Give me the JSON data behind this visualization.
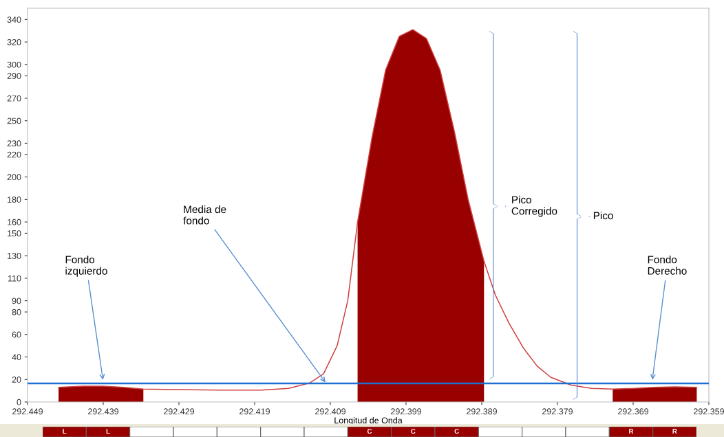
{
  "chart_data": [
    {
      "type": "line",
      "xlabel": "Longitud de Onda",
      "xlim": [
        292.449,
        292.359
      ],
      "xticks": [
        292.449,
        292.439,
        292.429,
        292.419,
        292.409,
        292.399,
        292.389,
        292.379,
        292.369,
        292.359
      ],
      "ylim": [
        0,
        350
      ],
      "yticks": [
        0,
        20,
        40,
        60,
        80,
        90,
        110,
        130,
        150,
        160,
        180,
        200,
        220,
        230,
        250,
        270,
        290,
        300,
        320,
        340
      ],
      "grid": false,
      "legend": false,
      "series": [
        {
          "type": "line",
          "color": "#d04040",
          "x": [
            292.4449,
            292.4417,
            292.439,
            292.4363,
            292.4337,
            292.429,
            292.4235,
            292.4181,
            292.4145,
            292.4117,
            292.4099,
            292.4081,
            292.4067,
            292.4054,
            292.4035,
            292.4017,
            292.3999,
            292.3981,
            292.3963,
            292.3945,
            292.3926,
            292.3908,
            292.3887,
            292.3872,
            292.3854,
            292.3835,
            292.3817,
            292.3799,
            292.3772,
            292.3745,
            292.3717,
            292.369,
            292.3663,
            292.3635,
            292.3606
          ],
          "values": [
            13,
            14,
            14,
            13,
            11.5,
            11,
            10.5,
            10.5,
            12,
            17,
            25,
            50,
            90,
            160,
            235,
            295,
            325,
            331,
            323,
            295,
            240,
            180,
            125,
            95,
            70,
            48,
            32,
            22,
            15,
            12,
            11.5,
            12,
            13,
            13.5,
            13
          ]
        },
        {
          "type": "area",
          "color": "#990000",
          "x": [
            292.4449,
            292.4417,
            292.439,
            292.4363,
            292.4337,
            292.429,
            292.4235,
            292.4181,
            292.4145,
            292.4117,
            292.4099,
            292.4081,
            292.4067,
            292.4054,
            292.4035,
            292.4017,
            292.3999,
            292.3981,
            292.3963,
            292.3945,
            292.3926,
            292.3908,
            292.3887,
            292.3872,
            292.3854,
            292.3835,
            292.3817,
            292.3799,
            292.3772,
            292.3745,
            292.3717,
            292.369,
            292.3663,
            292.3635,
            292.3606
          ],
          "values": [
            13,
            14,
            14,
            13,
            11.5,
            null,
            null,
            null,
            null,
            null,
            null,
            null,
            null,
            160,
            235,
            295,
            325,
            331,
            323,
            295,
            240,
            180,
            125,
            null,
            null,
            null,
            null,
            null,
            null,
            null,
            11.5,
            12,
            13,
            13.5,
            13
          ]
        }
      ],
      "ref_lines": [
        {
          "axis": "y",
          "value": 16.5,
          "color": "#1f6fd0",
          "line_style": "solid"
        }
      ],
      "annotations": [
        {
          "text": "Fondo\nizquierdo",
          "x": 292.439,
          "y": 18
        },
        {
          "text": "Media de\nfondo",
          "x": 292.4095,
          "y": 16
        },
        {
          "text": "Fondo\nDerecho",
          "x": 292.3665,
          "y": 18
        },
        "Pico\nCorregido",
        "Pico"
      ]
    },
    {
      "type": "other",
      "categories": [
        "L",
        "L",
        null,
        null,
        null,
        null,
        null,
        "C",
        "C",
        "C",
        null,
        null,
        null,
        "R",
        "R"
      ],
      "colors": [
        "#990000",
        "#990000",
        "#ffffff",
        "#ffffff",
        "#ffffff",
        "#ffffff",
        "#ffffff",
        "#990000",
        "#990000",
        "#990000",
        "#ffffff",
        "#ffffff",
        "#ffffff",
        "#990000",
        "#990000"
      ]
    }
  ]
}
